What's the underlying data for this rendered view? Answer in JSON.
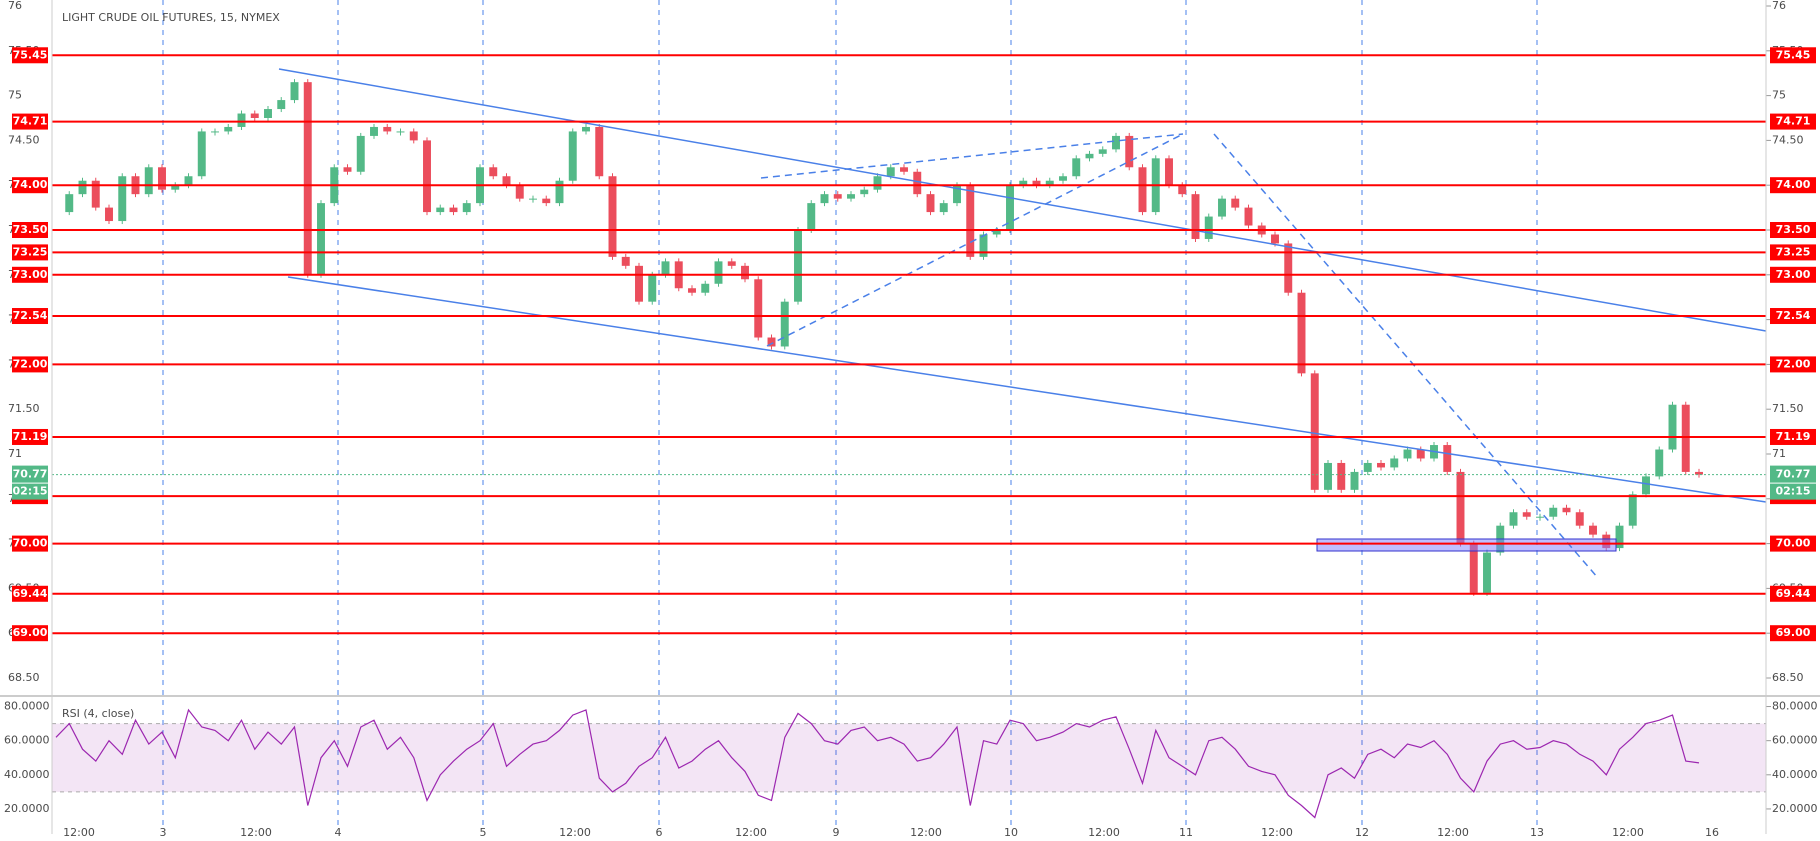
{
  "chart_data": {
    "type": "candlestick",
    "title": "LIGHT CRUDE OIL FUTURES, 15, NYMEX",
    "x_labels": [
      "12:00",
      "3",
      "12:00",
      "4",
      "5",
      "12:00",
      "6",
      "12:00",
      "9",
      "12:00",
      "10",
      "12:00",
      "11",
      "12:00",
      "12",
      "12:00",
      "13",
      "12:00",
      "16"
    ],
    "closes": [
      73.7,
      73.9,
      74.05,
      73.75,
      73.6,
      74.1,
      73.9,
      74.2,
      73.95,
      74.0,
      74.1,
      74.6,
      74.6,
      74.65,
      74.8,
      74.75,
      74.85,
      74.95,
      75.15,
      73.0,
      73.8,
      74.2,
      74.15,
      74.55,
      74.65,
      74.6,
      74.6,
      74.5,
      73.7,
      73.75,
      73.7,
      73.8,
      74.2,
      74.1,
      74.0,
      73.85,
      73.85,
      73.8,
      74.05,
      74.6,
      74.65,
      74.1,
      73.2,
      73.1,
      72.7,
      73.0,
      73.15,
      72.85,
      72.8,
      72.9,
      73.15,
      73.1,
      72.95,
      72.3,
      72.2,
      72.7,
      73.5,
      73.8,
      73.9,
      73.85,
      73.9,
      73.95,
      74.1,
      74.2,
      74.15,
      73.9,
      73.7,
      73.8,
      74.0,
      73.2,
      73.45,
      73.5,
      74.0,
      74.05,
      74.0,
      74.05,
      74.1,
      74.3,
      74.35,
      74.4,
      74.55,
      74.2,
      73.7,
      74.3,
      74.0,
      73.9,
      73.4,
      73.65,
      73.85,
      73.75,
      73.55,
      73.45,
      73.35,
      72.8,
      71.9,
      70.6,
      70.9,
      70.6,
      70.8,
      70.9,
      70.85,
      70.95,
      71.05,
      70.95,
      71.1,
      70.8,
      70.0,
      69.45,
      69.9,
      70.2,
      70.35,
      70.3,
      70.3,
      70.4,
      70.35,
      70.2,
      70.1,
      69.95,
      70.2,
      70.55,
      70.75,
      71.05,
      71.55,
      70.8,
      70.77
    ],
    "up_color": "#53b987",
    "down_color": "#eb4d5c",
    "ylim": [
      68.5,
      76.0
    ],
    "yticks": [
      {
        "value": 68.5,
        "label": "68.50"
      },
      69,
      {
        "value": 69.5,
        "label": "69.50"
      },
      70,
      {
        "value": 70.5,
        "label": "70.50"
      },
      71,
      {
        "value": 71.5,
        "label": "71.50"
      },
      72,
      {
        "value": 72.5,
        "label": "72.50"
      },
      73,
      {
        "value": 73.5,
        "label": "73.50"
      },
      74,
      {
        "value": 74.5,
        "label": "74.50"
      },
      75,
      {
        "value": 75.5,
        "label": "75.50"
      },
      76
    ],
    "levels": [
      75.45,
      74.71,
      {
        "value": 74.0,
        "label": "74.00"
      },
      {
        "value": 73.5,
        "label": "73.50"
      },
      73.25,
      {
        "value": 73.0,
        "label": "73.00"
      },
      72.54,
      {
        "value": 72.0,
        "label": "72.00"
      },
      71.19,
      70.53,
      {
        "value": 70.0,
        "label": "70.00"
      },
      69.44,
      {
        "value": 69.0,
        "label": "69.00"
      }
    ],
    "level_color": "#ff0000",
    "current_price": 70.77,
    "countdown": "02:15",
    "rsi": {
      "title": "RSI (4, close)",
      "color": "#9c27b0",
      "values": [
        62,
        70,
        55,
        48,
        60,
        52,
        72,
        58,
        65,
        50,
        78,
        68,
        66,
        60,
        72,
        55,
        65,
        58,
        68,
        22,
        50,
        60,
        45,
        68,
        72,
        55,
        62,
        50,
        25,
        40,
        48,
        55,
        60,
        70,
        45,
        52,
        58,
        60,
        66,
        75,
        78,
        38,
        30,
        35,
        45,
        50,
        62,
        44,
        48,
        55,
        60,
        50,
        42,
        28,
        25,
        62,
        76,
        70,
        60,
        58,
        66,
        68,
        60,
        62,
        58,
        48,
        50,
        58,
        68,
        22,
        60,
        58,
        72,
        70,
        60,
        62,
        65,
        70,
        68,
        72,
        74,
        55,
        35,
        66,
        50,
        45,
        40,
        60,
        62,
        55,
        45,
        42,
        40,
        28,
        22,
        15,
        40,
        44,
        38,
        52,
        55,
        50,
        58,
        56,
        60,
        52,
        38,
        30,
        48,
        58,
        60,
        55,
        56,
        60,
        58,
        52,
        48,
        40,
        55,
        62,
        70,
        72,
        75,
        48,
        47
      ],
      "ylim": [
        10,
        85
      ],
      "yticks": [
        {
          "value": 20,
          "label": "20.0000"
        },
        {
          "value": 40,
          "label": "40.0000"
        },
        {
          "value": 60,
          "label": "60.0000"
        },
        {
          "value": 80,
          "label": "80.0000"
        }
      ],
      "band": [
        30,
        70
      ]
    }
  }
}
